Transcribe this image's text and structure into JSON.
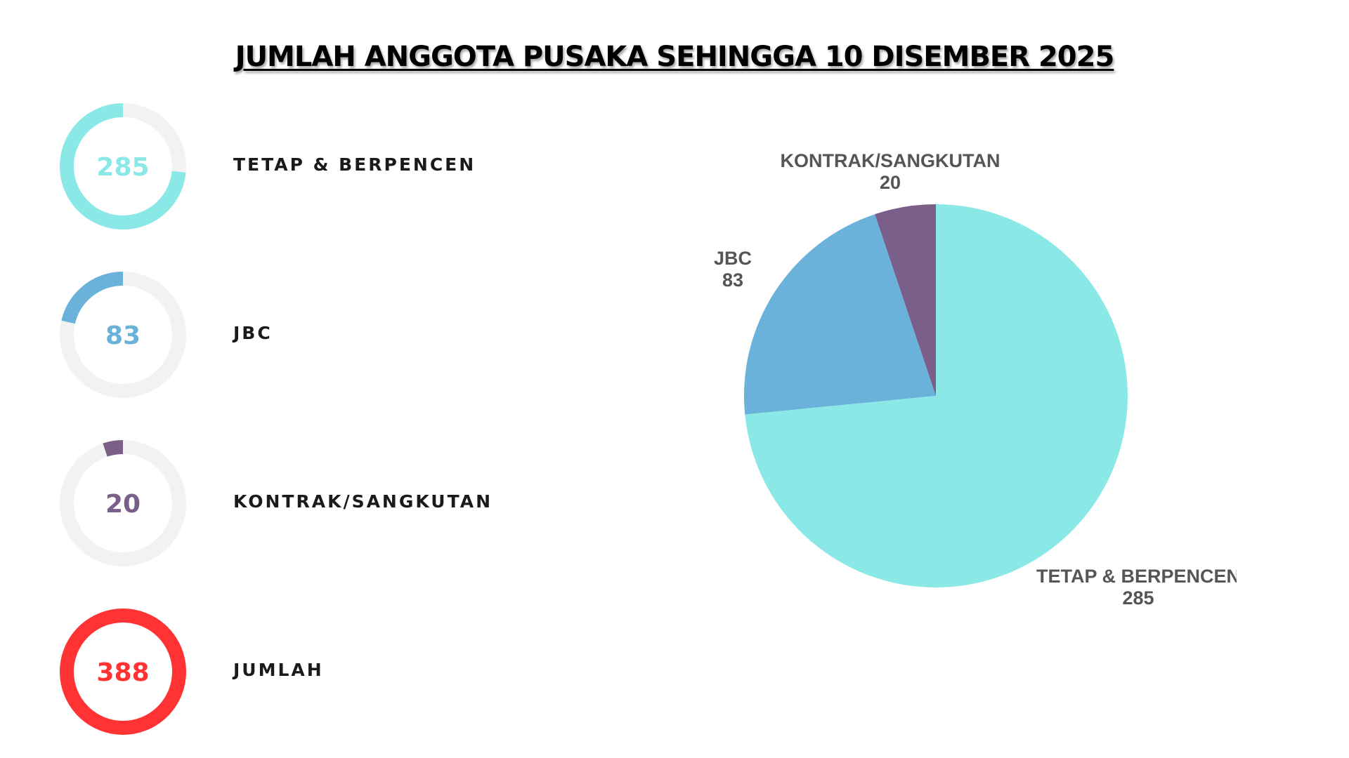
{
  "title": "JUMLAH ANGGOTA PUSAKA SEHINGGA 10 DISEMBER 2025",
  "rings": [
    {
      "label": "TETAP & BERPENCEN",
      "value": 285,
      "value_text": "285",
      "color": "#8AE9E7"
    },
    {
      "label": "JBC",
      "value": 83,
      "value_text": "83",
      "color": "#6BB2DA"
    },
    {
      "label": "KONTRAK/SANGKUTAN",
      "value": 20,
      "value_text": "20",
      "color": "#7A5F89"
    },
    {
      "label": "JUMLAH",
      "value": 388,
      "value_text": "388",
      "color": "#FF3333"
    }
  ],
  "ring_track_color": "#F2F2F2",
  "chart_data": {
    "type": "pie",
    "slices": [
      {
        "label": "TETAP & BERPENCEN",
        "value": 285,
        "value_text": "285",
        "color": "#8AE9E7"
      },
      {
        "label": "JBC",
        "value": 83,
        "value_text": "83",
        "color": "#6BB2DA"
      },
      {
        "label": "KONTRAK/SANGKUTAN",
        "value": 20,
        "value_text": "20",
        "color": "#7A5F89"
      }
    ],
    "total": 388
  }
}
